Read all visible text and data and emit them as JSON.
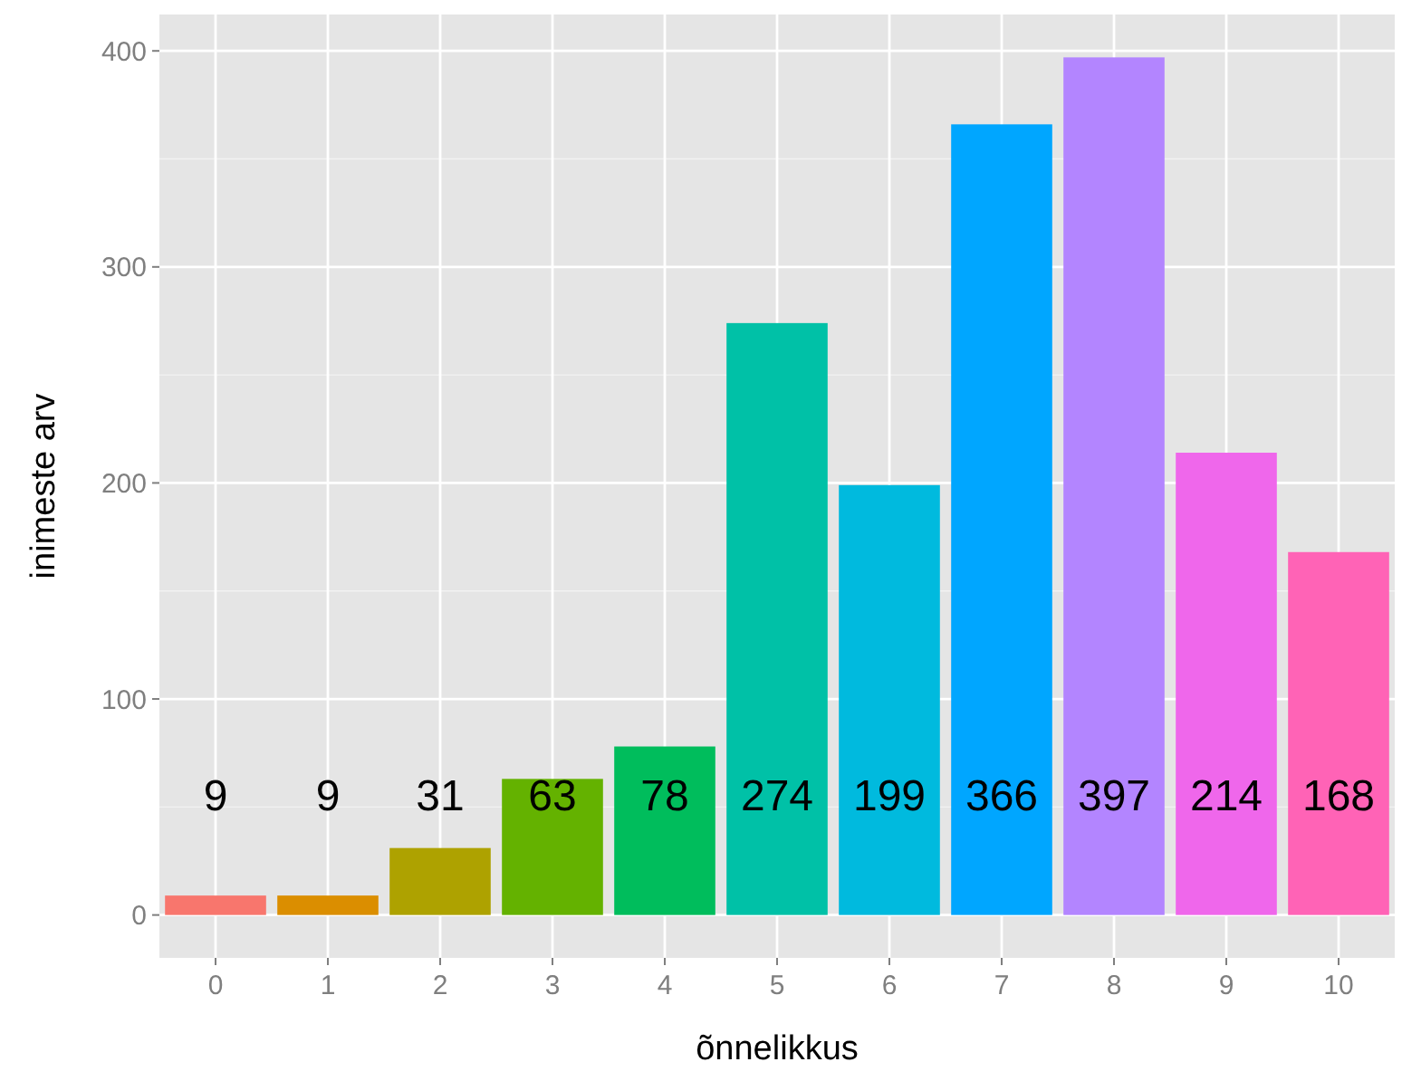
{
  "chart_data": {
    "type": "bar",
    "xlabel": "õnnelikkus",
    "ylabel": "inimeste arv",
    "categories": [
      "0",
      "1",
      "2",
      "3",
      "4",
      "5",
      "6",
      "7",
      "8",
      "9",
      "10"
    ],
    "values": [
      9,
      9,
      31,
      63,
      78,
      274,
      199,
      366,
      397,
      214,
      168
    ],
    "colors": [
      "#f8766d",
      "#db8e00",
      "#aea200",
      "#64b200",
      "#00bd5c",
      "#00c1a7",
      "#00bade",
      "#00a6ff",
      "#b385ff",
      "#ef67eb",
      "#ff63b6"
    ],
    "ylim": [
      -19.85,
      416.85
    ],
    "yticks": [
      0,
      100,
      200,
      300,
      400
    ],
    "grid": true,
    "data_labels": true
  }
}
